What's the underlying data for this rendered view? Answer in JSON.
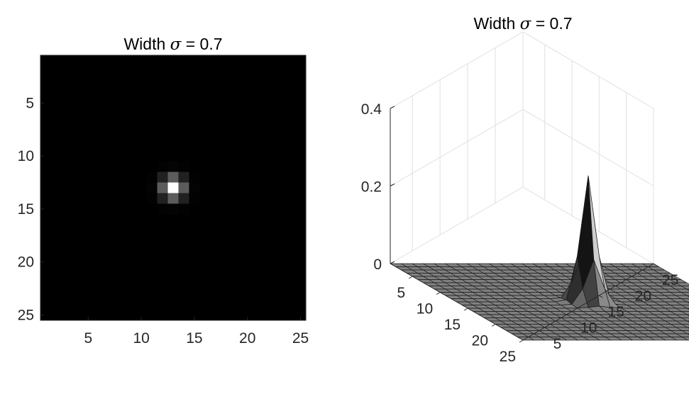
{
  "chart_data": [
    {
      "type": "heatmap",
      "title_prefix": "Width ",
      "title_symbol": "σ",
      "title_suffix": " = 0.7",
      "colormap": "gray",
      "grid_size": 25,
      "center": [
        13,
        13
      ],
      "sigma": 0.7,
      "peak": 0.325,
      "xticks": [
        "5",
        "10",
        "15",
        "20",
        "25"
      ],
      "yticks": [
        "5",
        "10",
        "15",
        "20",
        "25"
      ]
    },
    {
      "type": "surface",
      "title_prefix": "Width ",
      "title_symbol": "σ",
      "title_suffix": " = 0.7",
      "grid_size": 25,
      "center": [
        13,
        13
      ],
      "sigma": 0.7,
      "peak": 0.325,
      "zlim": [
        0,
        0.4
      ],
      "zticks": [
        "0",
        "0.2",
        "0.4"
      ],
      "xticks": [
        "5",
        "10",
        "15",
        "20",
        "25"
      ],
      "yticks": [
        "5",
        "10",
        "15",
        "20",
        "25"
      ],
      "grid": true
    }
  ]
}
